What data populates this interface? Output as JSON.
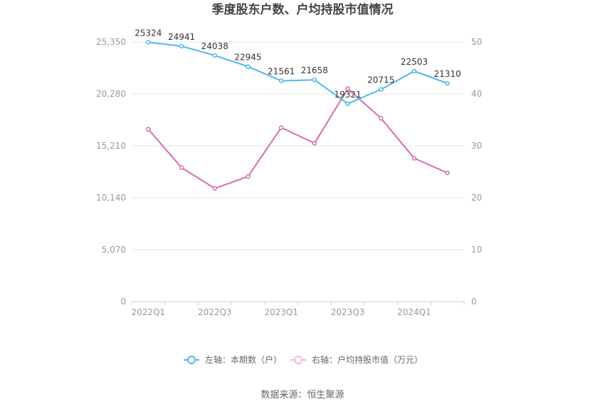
{
  "chart_data": {
    "type": "line",
    "title": "季度股东户数、户均持股市值情况",
    "x": [
      "2022Q1",
      "2022Q2",
      "2022Q3",
      "2022Q4",
      "2023Q1",
      "2023Q2",
      "2023Q3",
      "2023Q4",
      "2024Q1",
      "2024Q2"
    ],
    "x_tick_labels": [
      "2022Q1",
      "2022Q3",
      "2023Q1",
      "2023Q3",
      "2024Q1"
    ],
    "y_left": {
      "ticks": [
        "0",
        "5,070",
        "10,140",
        "15,210",
        "20,280",
        "25,350"
      ],
      "ylim": [
        0,
        25350
      ]
    },
    "y_right": {
      "ticks": [
        "0",
        "10",
        "20",
        "30",
        "40",
        "50"
      ],
      "ylim": [
        0,
        50
      ]
    },
    "series": [
      {
        "name": "左轴：本期数（户）",
        "axis": "left",
        "color": "#4fb8ea",
        "values": [
          25324,
          24941,
          24038,
          22945,
          21561,
          21658,
          19321,
          20715,
          22503,
          21310
        ],
        "labels": [
          "25324",
          "24941",
          "24038",
          "22945",
          "21561",
          "21658",
          "19321",
          "20715",
          "22503",
          "21310"
        ]
      },
      {
        "name": "右轴：户均持股市值（万元）",
        "axis": "right",
        "color": "#d46fae",
        "values": [
          33.2,
          25.8,
          21.8,
          24.1,
          33.5,
          30.5,
          41.0,
          35.3,
          27.6,
          24.8
        ]
      }
    ],
    "grid": true,
    "legend_position": "bottom-center"
  },
  "source": "数据来源：恒生聚源"
}
